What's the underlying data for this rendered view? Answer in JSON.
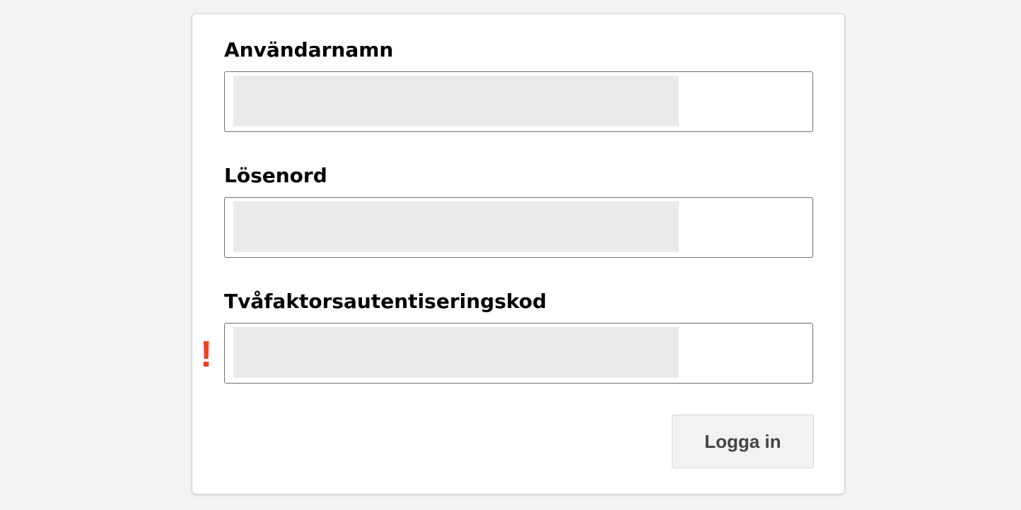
{
  "form": {
    "fields": [
      {
        "label": "Användarnamn",
        "value": ""
      },
      {
        "label": "Lösenord",
        "value": ""
      },
      {
        "label": "Tvåfaktorsautentiseringskod",
        "value": "",
        "error_marker": "!"
      }
    ],
    "submit_label": "Logga in"
  },
  "colors": {
    "error": "#ee4025",
    "background": "#f3f3f3"
  }
}
